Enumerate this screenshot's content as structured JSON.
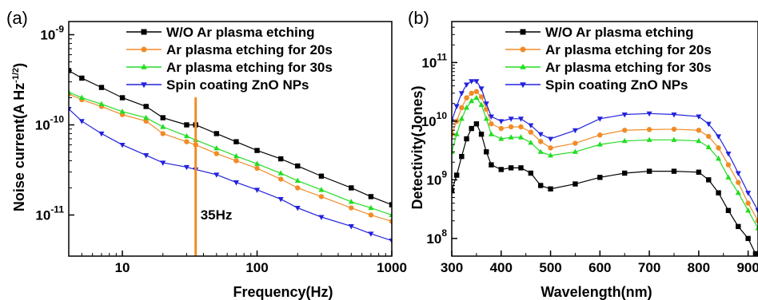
{
  "chart_data": [
    {
      "type": "line",
      "panel_label": "(a)",
      "xlabel": "Frequency(Hz)",
      "ylabel": "Noise current(A Hz",
      "ylabel_sup": "-1/2",
      "ylabel_tail": ")",
      "xscale": "log",
      "yscale": "log",
      "xlim": [
        4,
        1000
      ],
      "ylim": [
        3.5e-12,
        1.4e-09
      ],
      "x_ticks": [
        {
          "value": 10,
          "label": "10"
        },
        {
          "value": 100,
          "label": "100"
        },
        {
          "value": 1000,
          "label": "1000"
        }
      ],
      "y_ticks": [
        {
          "value": 1e-11,
          "base": "10",
          "exp": "-11"
        },
        {
          "value": 1e-10,
          "base": "10",
          "exp": "-10"
        },
        {
          "value": 1e-09,
          "base": "10",
          "exp": "-9"
        }
      ],
      "legend_position": "top-right",
      "annotation": {
        "x": 35,
        "label": "35Hz",
        "color": "#f08c28"
      },
      "series": [
        {
          "name": "W/O Ar plasma etching",
          "color": "#000000",
          "marker": "square",
          "x": [
            4,
            5,
            7,
            10,
            15,
            20,
            30,
            35,
            50,
            70,
            100,
            150,
            200,
            300,
            500,
            700,
            1000
          ],
          "y": [
            4e-10,
            3.3e-10,
            2.6e-10,
            2e-10,
            1.6e-10,
            1.2e-10,
            1e-10,
            1e-10,
            8e-11,
            6.5e-11,
            5.2e-11,
            4.2e-11,
            3.5e-11,
            2.7e-11,
            2e-11,
            1.6e-11,
            1.3e-11
          ]
        },
        {
          "name": "Ar plasma etching for 20s",
          "color": "#f08c28",
          "marker": "circle",
          "x": [
            4,
            5,
            7,
            10,
            15,
            20,
            30,
            35,
            50,
            70,
            100,
            150,
            200,
            300,
            500,
            700,
            1000
          ],
          "y": [
            2.2e-10,
            1.9e-10,
            1.6e-10,
            1.3e-10,
            1.1e-10,
            8e-11,
            6.5e-11,
            6e-11,
            4.8e-11,
            4e-11,
            3.3e-11,
            2.5e-11,
            2e-11,
            1.6e-11,
            1.2e-11,
            1e-11,
            8.5e-12
          ]
        },
        {
          "name": "Ar plasma etching for 30s",
          "color": "#22dd22",
          "marker": "triangle-up",
          "x": [
            4,
            5,
            7,
            10,
            15,
            20,
            30,
            35,
            50,
            70,
            100,
            150,
            200,
            300,
            500,
            700,
            1000
          ],
          "y": [
            2.3e-10,
            2e-10,
            1.7e-10,
            1.4e-10,
            1.2e-10,
            9.5e-11,
            7.5e-11,
            6.8e-11,
            5.5e-11,
            4.5e-11,
            3.7e-11,
            2.9e-11,
            2.4e-11,
            1.9e-11,
            1.4e-11,
            1.2e-11,
            1e-11
          ]
        },
        {
          "name": "Spin coating ZnO NPs",
          "color": "#2222dd",
          "marker": "triangle-down",
          "x": [
            4,
            5,
            7,
            10,
            15,
            20,
            30,
            35,
            50,
            70,
            100,
            150,
            200,
            300,
            500,
            700,
            1000
          ],
          "y": [
            1.5e-10,
            1.1e-10,
            8e-11,
            6e-11,
            4.6e-11,
            3.8e-11,
            3.4e-11,
            3.2e-11,
            2.8e-11,
            2.3e-11,
            1.9e-11,
            1.5e-11,
            1.2e-11,
            9.5e-12,
            7.5e-12,
            6.2e-12,
            5.2e-12
          ]
        }
      ]
    },
    {
      "type": "line",
      "panel_label": "(b)",
      "xlabel": "Wavelength(nm)",
      "ylabel": "Detectivity(Jones)",
      "xscale": "linear",
      "yscale": "log",
      "xlim": [
        300,
        920
      ],
      "ylim": [
        50000000.0,
        500000000000.0
      ],
      "x_ticks": [
        {
          "value": 300,
          "label": "300"
        },
        {
          "value": 400,
          "label": "400"
        },
        {
          "value": 500,
          "label": "500"
        },
        {
          "value": 600,
          "label": "600"
        },
        {
          "value": 700,
          "label": "700"
        },
        {
          "value": 800,
          "label": "800"
        },
        {
          "value": 900,
          "label": "900"
        }
      ],
      "y_ticks": [
        {
          "value": 100000000.0,
          "base": "10",
          "exp": "8"
        },
        {
          "value": 1000000000.0,
          "base": "10",
          "exp": "9"
        },
        {
          "value": 10000000000.0,
          "base": "10",
          "exp": "10"
        },
        {
          "value": 100000000000.0,
          "base": "10",
          "exp": "11"
        }
      ],
      "legend_position": "top-right",
      "series": [
        {
          "name": "W/O Ar plasma etching",
          "color": "#000000",
          "marker": "square",
          "x": [
            300,
            310,
            320,
            330,
            340,
            350,
            360,
            370,
            380,
            400,
            420,
            440,
            460,
            480,
            500,
            550,
            600,
            650,
            700,
            750,
            800,
            820,
            840,
            860,
            880,
            900,
            915
          ],
          "y": [
            650000000.0,
            1200000000.0,
            2500000000.0,
            5000000000.0,
            7500000000.0,
            9000000000.0,
            6000000000.0,
            3000000000.0,
            1800000000.0,
            1500000000.0,
            1600000000.0,
            1600000000.0,
            1300000000.0,
            800000000.0,
            700000000.0,
            850000000.0,
            1100000000.0,
            1300000000.0,
            1400000000.0,
            1400000000.0,
            1350000000.0,
            1000000000.0,
            600000000.0,
            300000000.0,
            160000000.0,
            100000000.0,
            55000000.0
          ]
        },
        {
          "name": "Ar plasma etching for 20s",
          "color": "#f08c28",
          "marker": "circle",
          "x": [
            300,
            310,
            320,
            330,
            340,
            350,
            360,
            370,
            380,
            400,
            420,
            440,
            460,
            480,
            500,
            550,
            600,
            650,
            700,
            750,
            800,
            820,
            840,
            860,
            880,
            900,
            920
          ],
          "y": [
            6000000000.0,
            10000000000.0,
            17000000000.0,
            25000000000.0,
            30000000000.0,
            32000000000.0,
            26000000000.0,
            16000000000.0,
            9000000000.0,
            7500000000.0,
            8000000000.0,
            8000000000.0,
            6500000000.0,
            4500000000.0,
            3500000000.0,
            4200000000.0,
            5800000000.0,
            7000000000.0,
            7200000000.0,
            7300000000.0,
            7000000000.0,
            5500000000.0,
            3500000000.0,
            1800000000.0,
            900000000.0,
            400000000.0,
            200000000.0
          ]
        },
        {
          "name": "Ar plasma etching for 30s",
          "color": "#22dd22",
          "marker": "triangle-up",
          "x": [
            300,
            310,
            320,
            330,
            340,
            350,
            360,
            370,
            380,
            400,
            420,
            440,
            460,
            480,
            500,
            550,
            600,
            650,
            700,
            750,
            800,
            820,
            840,
            860,
            880,
            900,
            920
          ],
          "y": [
            3000000000.0,
            6000000000.0,
            11000000000.0,
            17000000000.0,
            22000000000.0,
            25000000000.0,
            19000000000.0,
            11000000000.0,
            6000000000.0,
            5000000000.0,
            5300000000.0,
            5300000000.0,
            4300000000.0,
            3000000000.0,
            2600000000.0,
            3000000000.0,
            4000000000.0,
            4600000000.0,
            4800000000.0,
            4800000000.0,
            4600000000.0,
            3600000000.0,
            2300000000.0,
            1100000000.0,
            600000000.0,
            300000000.0,
            150000000.0
          ]
        },
        {
          "name": "Spin coating ZnO NPs",
          "color": "#2222dd",
          "marker": "triangle-down",
          "x": [
            300,
            310,
            320,
            330,
            340,
            350,
            360,
            370,
            380,
            400,
            420,
            440,
            460,
            480,
            500,
            550,
            600,
            650,
            700,
            750,
            800,
            820,
            840,
            860,
            880,
            900,
            920
          ],
          "y": [
            10000000000.0,
            18000000000.0,
            30000000000.0,
            42000000000.0,
            48000000000.0,
            48000000000.0,
            36000000000.0,
            20000000000.0,
            12000000000.0,
            10000000000.0,
            11000000000.0,
            11000000000.0,
            8500000000.0,
            6000000000.0,
            5000000000.0,
            7000000000.0,
            11000000000.0,
            13000000000.0,
            13500000000.0,
            13000000000.0,
            12000000000.0,
            9000000000.0,
            5500000000.0,
            2800000000.0,
            1300000000.0,
            600000000.0,
            300000000.0
          ]
        }
      ]
    }
  ]
}
